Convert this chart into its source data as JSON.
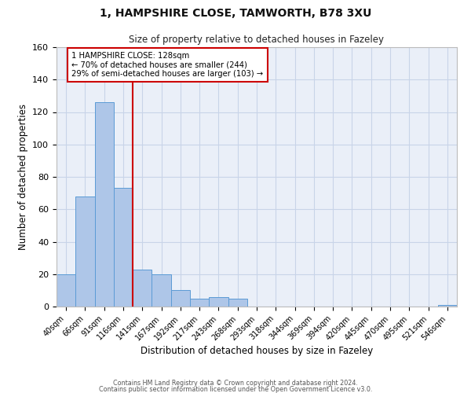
{
  "title1": "1, HAMPSHIRE CLOSE, TAMWORTH, B78 3XU",
  "title2": "Size of property relative to detached houses in Fazeley",
  "xlabel": "Distribution of detached houses by size in Fazeley",
  "ylabel": "Number of detached properties",
  "bar_labels": [
    "40sqm",
    "66sqm",
    "91sqm",
    "116sqm",
    "141sqm",
    "167sqm",
    "192sqm",
    "217sqm",
    "243sqm",
    "268sqm",
    "293sqm",
    "318sqm",
    "344sqm",
    "369sqm",
    "394sqm",
    "420sqm",
    "445sqm",
    "470sqm",
    "495sqm",
    "521sqm",
    "546sqm"
  ],
  "bar_values": [
    20,
    68,
    126,
    73,
    23,
    20,
    10,
    5,
    6,
    5,
    0,
    0,
    0,
    0,
    0,
    0,
    0,
    0,
    0,
    0,
    1
  ],
  "bar_color": "#aec6e8",
  "bar_edge_color": "#5b9bd5",
  "vline_x": 3.5,
  "vline_color": "#cc0000",
  "annotation_line1": "1 HAMPSHIRE CLOSE: 128sqm",
  "annotation_line2": "← 70% of detached houses are smaller (244)",
  "annotation_line3": "29% of semi-detached houses are larger (103) →",
  "annotation_box_color": "#ffffff",
  "annotation_box_edge": "#cc0000",
  "ylim": [
    0,
    160
  ],
  "yticks": [
    0,
    20,
    40,
    60,
    80,
    100,
    120,
    140,
    160
  ],
  "grid_color": "#c8d4e8",
  "bg_color": "#eaeff8",
  "footer1": "Contains HM Land Registry data © Crown copyright and database right 2024.",
  "footer2": "Contains public sector information licensed under the Open Government Licence v3.0."
}
